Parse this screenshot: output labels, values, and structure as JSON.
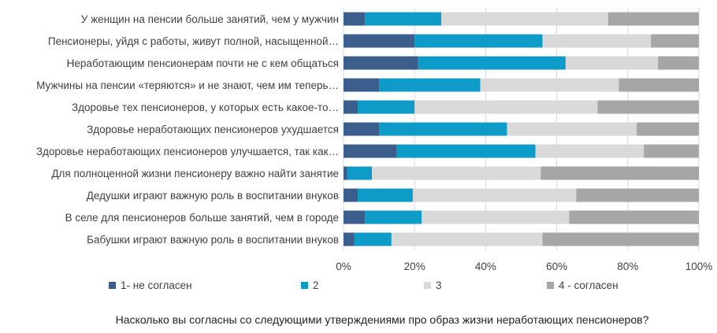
{
  "chart_data": {
    "type": "bar",
    "orientation": "horizontal",
    "stacked": "percent",
    "caption": "Насколько вы согласны со следующими утверждениями про образ жизни неработающих пенсионеров?",
    "categories": [
      "У женщин на пенсии больше занятий, чем у мужчин",
      "Пенсионеры, уйдя с работы, живут полной, насыщенной…",
      "Неработающим пенсионерам почти не с кем общаться",
      "Мужчины на пенсии «теряются» и не знают, чем им теперь…",
      "Здоровье тех пенсионеров, у которых есть какое-то…",
      "Здоровье неработающих пенсионеров ухудшается",
      "Здоровье неработающих пенсионеров улучшается, так как…",
      "Для полноценной жизни пенсионеру важно найти занятие",
      "Дедушки играют важную роль в воспитании внуков",
      "В селе для пенсионеров больше занятий, чем в городе",
      "Бабушки играют важную роль в воспитании внуков"
    ],
    "series": [
      {
        "name": "1- не согласен",
        "color": "#3b5e8c",
        "values": [
          6,
          20,
          21,
          10,
          4,
          10,
          15,
          1,
          4,
          6,
          3
        ]
      },
      {
        "name": "2",
        "color": "#0f9bc7",
        "values": [
          21.5,
          36,
          41.5,
          28.5,
          16,
          36,
          39,
          7,
          15.5,
          16,
          10.5
        ]
      },
      {
        "name": "3",
        "color": "#d9d9d9",
        "values": [
          47,
          30.5,
          26,
          39,
          51.5,
          36.5,
          30.5,
          47.5,
          46,
          41.5,
          42.5
        ]
      },
      {
        "name": "4 - согласен",
        "color": "#a6a6a6",
        "values": [
          25.5,
          13.5,
          11.5,
          22.5,
          28.5,
          17.5,
          15.5,
          44.5,
          34.5,
          36.5,
          44
        ]
      }
    ],
    "xlim": [
      0,
      100
    ],
    "x_ticks": [
      "0%",
      "20%",
      "40%",
      "60%",
      "80%",
      "100%"
    ],
    "grid": true,
    "legend_position": "bottom"
  }
}
